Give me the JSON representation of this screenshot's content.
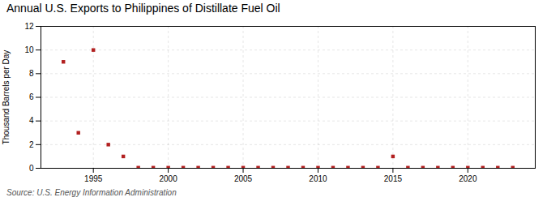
{
  "chart_data": {
    "type": "scatter",
    "title": "Annual U.S. Exports to Philippines of Distillate Fuel Oil",
    "ylabel": "Thousand Barrels per Day",
    "source": "Source: U.S. Energy Information Administration",
    "x": [
      1993,
      1994,
      1995,
      1996,
      1997,
      1998,
      1999,
      2000,
      2001,
      2002,
      2003,
      2004,
      2005,
      2006,
      2007,
      2008,
      2009,
      2010,
      2011,
      2012,
      2013,
      2014,
      2015,
      2016,
      2017,
      2018,
      2019,
      2020,
      2021,
      2022,
      2023
    ],
    "values": [
      9,
      3,
      10,
      2,
      1,
      0.05,
      0.05,
      0.05,
      0.05,
      0.05,
      0.05,
      0.05,
      0.05,
      0.05,
      0.05,
      0.05,
      0.05,
      0.05,
      0.05,
      0.05,
      0.05,
      0.05,
      1,
      0.05,
      0.05,
      0.05,
      0.05,
      0.05,
      0.05,
      0.05,
      0.05
    ],
    "color": "#b22020",
    "marker": "square",
    "xlim": [
      1991.5,
      2024.5
    ],
    "xticks": [
      1995,
      2000,
      2005,
      2010,
      2015,
      2020
    ],
    "ylim": [
      0,
      12
    ],
    "yticks": [
      0,
      2,
      4,
      6,
      8,
      10,
      12
    ],
    "grid": true
  }
}
